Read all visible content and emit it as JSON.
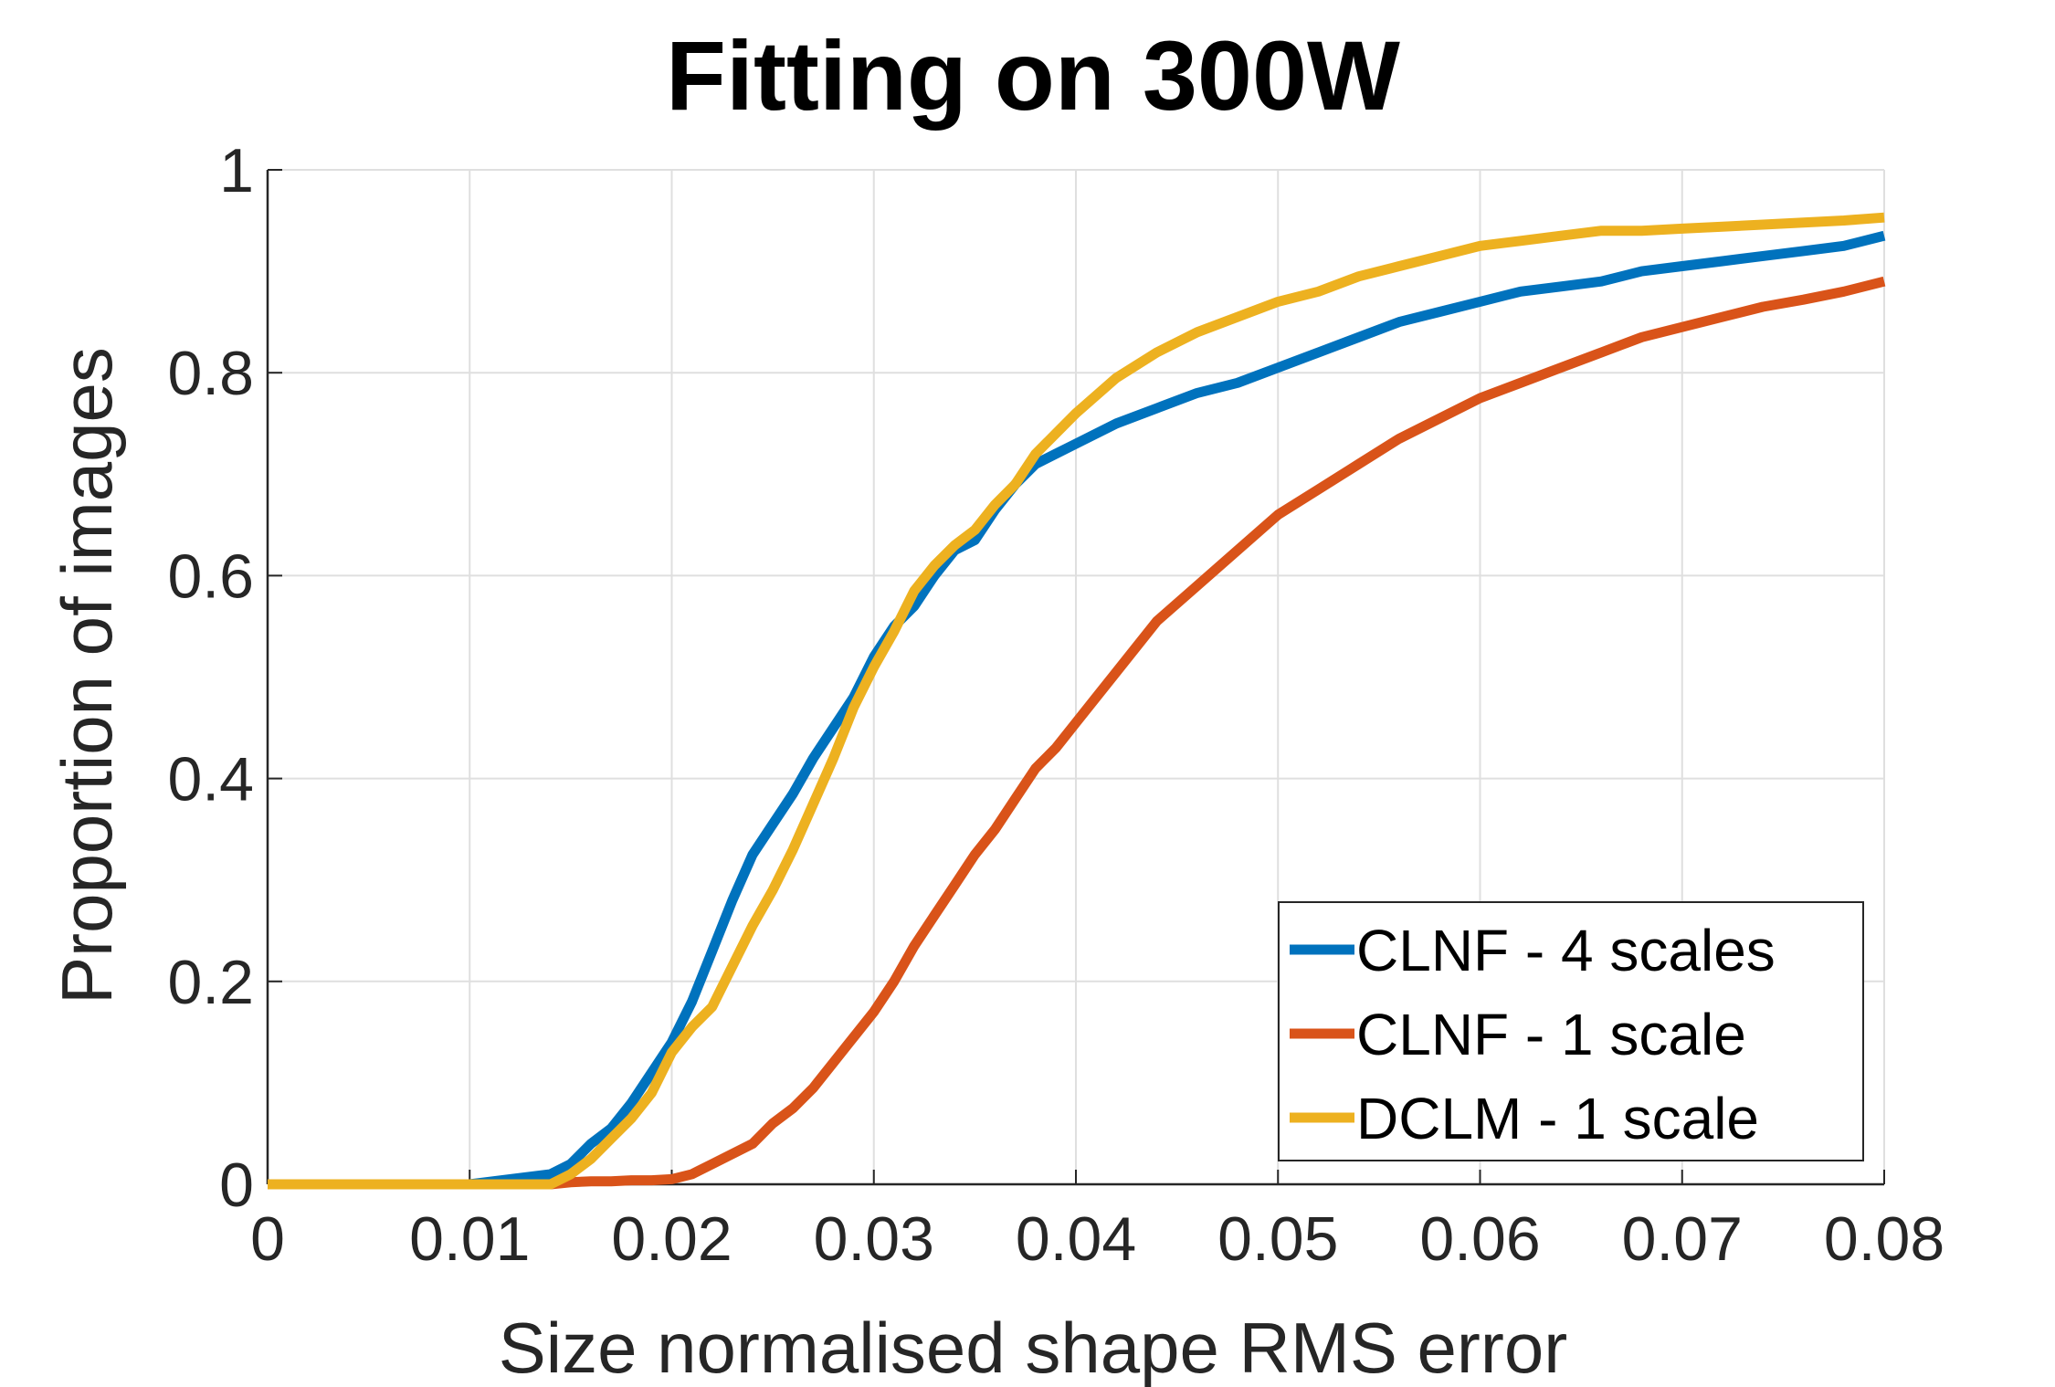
{
  "chart_data": {
    "type": "line",
    "title": "Fitting on 300W",
    "xlabel": "Size normalised shape RMS error",
    "ylabel": "Proportion of images",
    "xlim": [
      0,
      0.08
    ],
    "ylim": [
      0,
      1
    ],
    "xticks": [
      0,
      0.01,
      0.02,
      0.03,
      0.04,
      0.05,
      0.06,
      0.07,
      0.08
    ],
    "xtick_labels": [
      "0",
      "0.01",
      "0.02",
      "0.03",
      "0.04",
      "0.05",
      "0.06",
      "0.07",
      "0.08"
    ],
    "yticks": [
      0,
      0.2,
      0.4,
      0.6,
      0.8,
      1
    ],
    "ytick_labels": [
      "0",
      "0.2",
      "0.4",
      "0.6",
      "0.8",
      "1"
    ],
    "grid": true,
    "legend_position": "bottom-right",
    "x": [
      0,
      0.005,
      0.01,
      0.012,
      0.014,
      0.015,
      0.016,
      0.017,
      0.018,
      0.019,
      0.02,
      0.021,
      0.022,
      0.023,
      0.024,
      0.025,
      0.026,
      0.027,
      0.028,
      0.029,
      0.03,
      0.031,
      0.032,
      0.033,
      0.034,
      0.035,
      0.036,
      0.037,
      0.038,
      0.039,
      0.04,
      0.042,
      0.044,
      0.046,
      0.048,
      0.05,
      0.052,
      0.054,
      0.056,
      0.058,
      0.06,
      0.062,
      0.064,
      0.066,
      0.068,
      0.07,
      0.072,
      0.074,
      0.076,
      0.078,
      0.08
    ],
    "series": [
      {
        "name": "CLNF - 4 scales",
        "color": "#0072BD",
        "values": [
          0,
          0,
          0,
          0.005,
          0.01,
          0.02,
          0.04,
          0.055,
          0.08,
          0.11,
          0.14,
          0.18,
          0.23,
          0.28,
          0.325,
          0.355,
          0.385,
          0.42,
          0.45,
          0.48,
          0.52,
          0.55,
          0.57,
          0.6,
          0.625,
          0.635,
          0.665,
          0.69,
          0.71,
          0.72,
          0.73,
          0.75,
          0.765,
          0.78,
          0.79,
          0.805,
          0.82,
          0.835,
          0.85,
          0.86,
          0.87,
          0.88,
          0.885,
          0.89,
          0.9,
          0.905,
          0.91,
          0.915,
          0.92,
          0.925,
          0.935
        ]
      },
      {
        "name": "CLNF - 1 scale",
        "color": "#D95319",
        "values": [
          0,
          0,
          0,
          0,
          0,
          0.002,
          0.003,
          0.003,
          0.004,
          0.004,
          0.005,
          0.01,
          0.02,
          0.03,
          0.04,
          0.06,
          0.075,
          0.095,
          0.12,
          0.145,
          0.17,
          0.2,
          0.235,
          0.265,
          0.295,
          0.325,
          0.35,
          0.38,
          0.41,
          0.43,
          0.455,
          0.505,
          0.555,
          0.59,
          0.625,
          0.66,
          0.685,
          0.71,
          0.735,
          0.755,
          0.775,
          0.79,
          0.805,
          0.82,
          0.835,
          0.845,
          0.855,
          0.865,
          0.872,
          0.88,
          0.89
        ]
      },
      {
        "name": "DCLM - 1 scale",
        "color": "#EDB120",
        "values": [
          0,
          0,
          0,
          0,
          0,
          0.01,
          0.025,
          0.045,
          0.065,
          0.09,
          0.13,
          0.155,
          0.175,
          0.215,
          0.255,
          0.29,
          0.33,
          0.375,
          0.42,
          0.47,
          0.51,
          0.545,
          0.585,
          0.61,
          0.63,
          0.645,
          0.67,
          0.69,
          0.72,
          0.74,
          0.76,
          0.795,
          0.82,
          0.84,
          0.855,
          0.87,
          0.88,
          0.895,
          0.905,
          0.915,
          0.925,
          0.93,
          0.935,
          0.94,
          0.94,
          0.942,
          0.944,
          0.946,
          0.948,
          0.95,
          0.953
        ]
      }
    ]
  }
}
